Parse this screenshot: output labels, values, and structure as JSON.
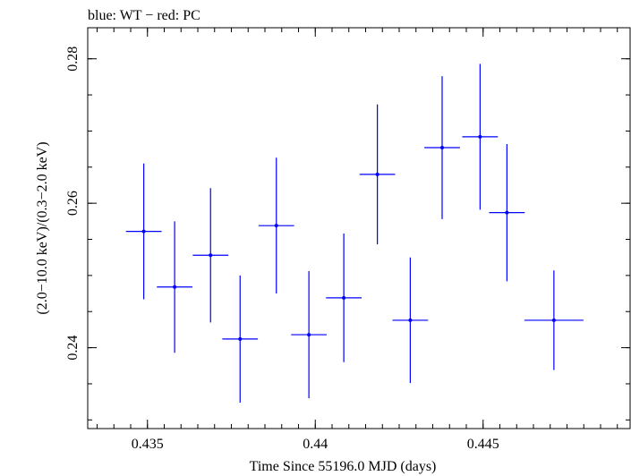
{
  "chart_data": {
    "type": "scatter",
    "title": "blue: WT − red: PC",
    "xlabel": "Time Since 55196.0 MJD (days)",
    "ylabel": "(2.0−10.0 keV)/(0.3−2.0 keV)",
    "xlim": [
      0.43322,
      0.44938
    ],
    "ylim": [
      0.2288,
      0.2843
    ],
    "x_ticks": [
      0.435,
      0.44,
      0.445
    ],
    "x_tick_labels": [
      "0.435",
      "0.44",
      "0.445"
    ],
    "y_ticks": [
      0.24,
      0.26,
      0.28
    ],
    "y_tick_labels": [
      "0.24",
      "0.26",
      "0.28"
    ],
    "grid": false,
    "series": [
      {
        "color": "#0000ff",
        "points": [
          {
            "x": 0.43489,
            "xerr": 0.00053,
            "y": 0.2561,
            "yerr": 0.0094
          },
          {
            "x": 0.43581,
            "xerr": 0.00053,
            "y": 0.2484,
            "yerr": 0.0091
          },
          {
            "x": 0.43688,
            "xerr": 0.00053,
            "y": 0.2528,
            "yerr": 0.0093
          },
          {
            "x": 0.43776,
            "xerr": 0.00053,
            "y": 0.2412,
            "yerr": 0.0088
          },
          {
            "x": 0.43884,
            "xerr": 0.00053,
            "y": 0.2569,
            "yerr": 0.0094
          },
          {
            "x": 0.43981,
            "xerr": 0.00053,
            "y": 0.2418,
            "yerr": 0.0088
          },
          {
            "x": 0.44085,
            "xerr": 0.00053,
            "y": 0.2469,
            "yerr": 0.0089
          },
          {
            "x": 0.44185,
            "xerr": 0.00053,
            "y": 0.264,
            "yerr": 0.0097
          },
          {
            "x": 0.44283,
            "xerr": 0.00053,
            "y": 0.2438,
            "yerr": 0.0087
          },
          {
            "x": 0.44378,
            "xerr": 0.00053,
            "y": 0.2677,
            "yerr": 0.0099
          },
          {
            "x": 0.44491,
            "xerr": 0.00053,
            "y": 0.2692,
            "yerr": 0.0101
          },
          {
            "x": 0.44571,
            "xerr": 0.00053,
            "y": 0.2587,
            "yerr": 0.0095
          },
          {
            "x": 0.44711,
            "xerr": 0.00088,
            "y": 0.2438,
            "yerr": 0.0069
          }
        ]
      }
    ]
  }
}
